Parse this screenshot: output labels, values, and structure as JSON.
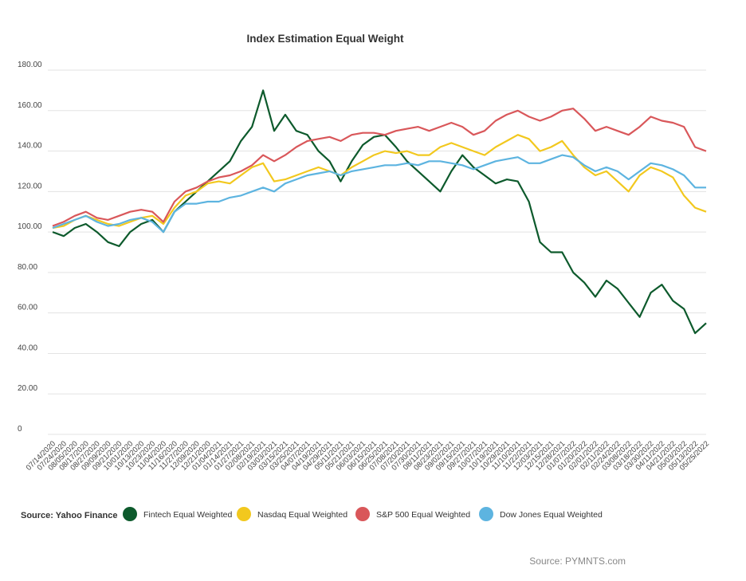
{
  "chart_data": {
    "type": "line",
    "title": "Index Estimation Equal Weight",
    "source": "Source: Yahoo Finance",
    "credit": "Source: PYMNTS.com",
    "categories": [
      "07/14/2020",
      "07/24/2020",
      "08/05/2020",
      "08/17/2020",
      "08/27/2020",
      "09/09/2020",
      "09/21/2020",
      "10/01/2020",
      "10/13/2020",
      "10/23/2020",
      "11/04/2020",
      "11/16/2020",
      "11/27/2020",
      "12/09/2020",
      "12/21/2020",
      "01/04/2021",
      "01/14/2021",
      "01/27/2021",
      "02/08/2021",
      "02/19/2021",
      "03/03/2021",
      "03/15/2021",
      "03/25/2021",
      "04/07/2021",
      "04/19/2021",
      "04/29/2021",
      "05/11/2021",
      "05/21/2021",
      "06/03/2021",
      "06/15/2021",
      "06/25/2021",
      "07/08/2021",
      "07/20/2021",
      "07/30/2021",
      "08/11/2021",
      "08/23/2021",
      "09/02/2021",
      "09/15/2021",
      "09/27/2021",
      "10/07/2021",
      "10/19/2021",
      "10/29/2021",
      "11/10/2021",
      "11/22/2021",
      "12/03/2021",
      "12/15/2021",
      "12/28/2021",
      "01/07/2022",
      "01/20/2022",
      "02/01/2022",
      "02/11/2022",
      "02/24/2022",
      "03/08/2022",
      "03/18/2022",
      "03/30/2022",
      "04/11/2022",
      "04/21/2022",
      "05/03/2022",
      "05/13/2022",
      "05/25/2022"
    ],
    "series": [
      {
        "name": "Fintech Equal Weighted",
        "color": "#0d5a2c",
        "values": [
          100,
          98,
          102,
          104,
          100,
          95,
          93,
          100,
          104,
          106,
          100,
          110,
          115,
          120,
          125,
          130,
          135,
          145,
          152,
          170,
          150,
          158,
          150,
          148,
          140,
          135,
          125,
          135,
          143,
          147,
          148,
          142,
          135,
          130,
          125,
          120,
          130,
          138,
          132,
          128,
          124,
          126,
          125,
          115,
          95,
          90,
          90,
          80,
          75,
          68,
          76,
          72,
          65,
          58,
          70,
          74,
          66,
          62,
          50,
          55
        ]
      },
      {
        "name": "Nasdaq Equal Weighted",
        "color": "#f2c81e",
        "values": [
          102,
          103,
          106,
          108,
          106,
          104,
          103,
          105,
          107,
          108,
          104,
          112,
          118,
          120,
          124,
          125,
          124,
          128,
          132,
          134,
          125,
          126,
          128,
          130,
          132,
          130,
          128,
          132,
          135,
          138,
          140,
          139,
          140,
          138,
          138,
          142,
          144,
          142,
          140,
          138,
          142,
          145,
          148,
          146,
          140,
          142,
          145,
          138,
          132,
          128,
          130,
          125,
          120,
          128,
          132,
          130,
          127,
          118,
          112,
          110
        ]
      },
      {
        "name": "S&P 500 Equal Weighted",
        "color": "#d9575a",
        "values": [
          103,
          105,
          108,
          110,
          107,
          106,
          108,
          110,
          111,
          110,
          105,
          115,
          120,
          122,
          125,
          127,
          128,
          130,
          133,
          138,
          135,
          138,
          142,
          145,
          146,
          147,
          145,
          148,
          149,
          149,
          148,
          150,
          151,
          152,
          150,
          152,
          154,
          152,
          148,
          150,
          155,
          158,
          160,
          157,
          155,
          157,
          160,
          161,
          156,
          150,
          152,
          150,
          148,
          152,
          157,
          155,
          154,
          152,
          142,
          140
        ]
      },
      {
        "name": "Dow Jones Equal Weighted",
        "color": "#5db4e0",
        "values": [
          102,
          104,
          106,
          108,
          105,
          103,
          104,
          106,
          107,
          105,
          100,
          110,
          114,
          114,
          115,
          115,
          117,
          118,
          120,
          122,
          120,
          124,
          126,
          128,
          129,
          130,
          128,
          130,
          131,
          132,
          133,
          133,
          134,
          133,
          135,
          135,
          134,
          133,
          131,
          133,
          135,
          136,
          137,
          134,
          134,
          136,
          138,
          137,
          133,
          130,
          132,
          130,
          126,
          130,
          134,
          133,
          131,
          128,
          122,
          122
        ]
      }
    ],
    "ylim": [
      0,
      180
    ],
    "yticks": [
      0,
      {
        "value": 20,
        "label": "20.00"
      },
      {
        "value": 40,
        "label": "40.00"
      },
      {
        "value": 60,
        "label": "60.00"
      },
      {
        "value": 80,
        "label": "80.00"
      },
      {
        "value": 100,
        "label": "100.00"
      },
      {
        "value": 120,
        "label": "120.00"
      },
      {
        "value": 140,
        "label": "140.00"
      },
      {
        "value": 160,
        "label": "160.00"
      },
      {
        "value": 180,
        "label": "180.00"
      }
    ],
    "grid": true
  }
}
